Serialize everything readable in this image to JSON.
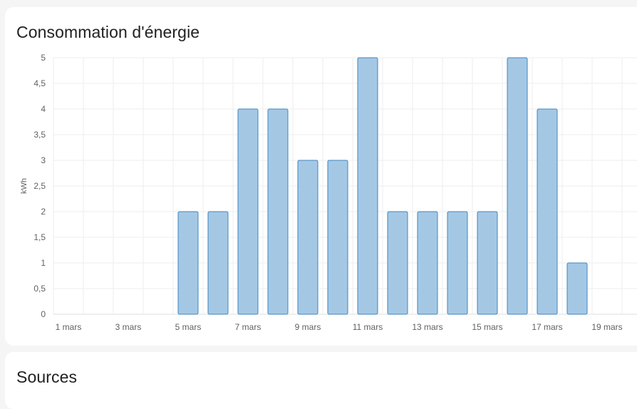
{
  "energy_card": {
    "title": "Consommation d'énergie"
  },
  "sources_card": {
    "title": "Sources"
  },
  "colors": {
    "bar_fill": "#a4c8e4",
    "bar_stroke": "#3f85bf",
    "grid": "#eeeeee",
    "axis": "#dddddd"
  },
  "chart_data": {
    "type": "bar",
    "ylabel": "kWh",
    "ylim": [
      0,
      5
    ],
    "yticks": [
      "0",
      "0,5",
      "1",
      "1,5",
      "2",
      "2,5",
      "3",
      "3,5",
      "4",
      "4,5",
      "5"
    ],
    "categories": [
      "1 mars",
      "2 mars",
      "3 mars",
      "4 mars",
      "5 mars",
      "6 mars",
      "7 mars",
      "8 mars",
      "9 mars",
      "10 mars",
      "11 mars",
      "12 mars",
      "13 mars",
      "14 mars",
      "15 mars",
      "16 mars",
      "17 mars",
      "18 mars",
      "19 mars"
    ],
    "xtick_labels": [
      "1 mars",
      "3 mars",
      "5 mars",
      "7 mars",
      "9 mars",
      "11 mars",
      "13 mars",
      "15 mars",
      "17 mars",
      "19 mars"
    ],
    "values": [
      0,
      0,
      0,
      0,
      2,
      2,
      4,
      4,
      3,
      3,
      5,
      2,
      2,
      2,
      2,
      5,
      4,
      1,
      0
    ],
    "grid": true,
    "legend": "none"
  }
}
